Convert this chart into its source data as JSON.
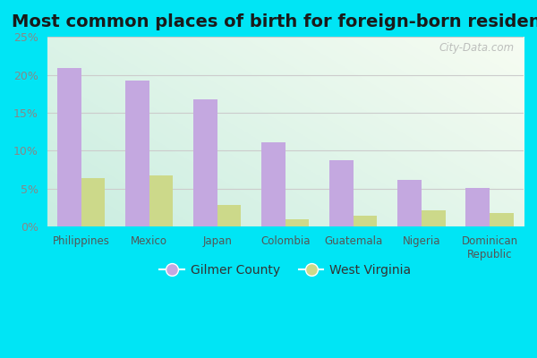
{
  "title": "Most common places of birth for foreign-born residents",
  "categories": [
    "Philippines",
    "Mexico",
    "Japan",
    "Colombia",
    "Guatemala",
    "Nigeria",
    "Dominican\nRepublic"
  ],
  "gilmer_county": [
    20.9,
    19.3,
    16.8,
    11.1,
    8.8,
    6.2,
    5.1
  ],
  "west_virginia": [
    6.4,
    6.7,
    2.9,
    1.0,
    1.5,
    2.2,
    1.8
  ],
  "gilmer_color": "#c4a8e0",
  "wv_color": "#ccd98a",
  "background_outer": "#00e5f5",
  "ylim": [
    0,
    25
  ],
  "yticks": [
    0,
    5,
    10,
    15,
    20,
    25
  ],
  "ytick_labels": [
    "0%",
    "5%",
    "10%",
    "15%",
    "20%",
    "25%"
  ],
  "legend_label1": "Gilmer County",
  "legend_label2": "West Virginia",
  "bar_width": 0.35,
  "title_fontsize": 14,
  "watermark": "City-Data.com",
  "grid_color": "#dddddd",
  "tick_color": "#888888",
  "label_color": "#555555"
}
